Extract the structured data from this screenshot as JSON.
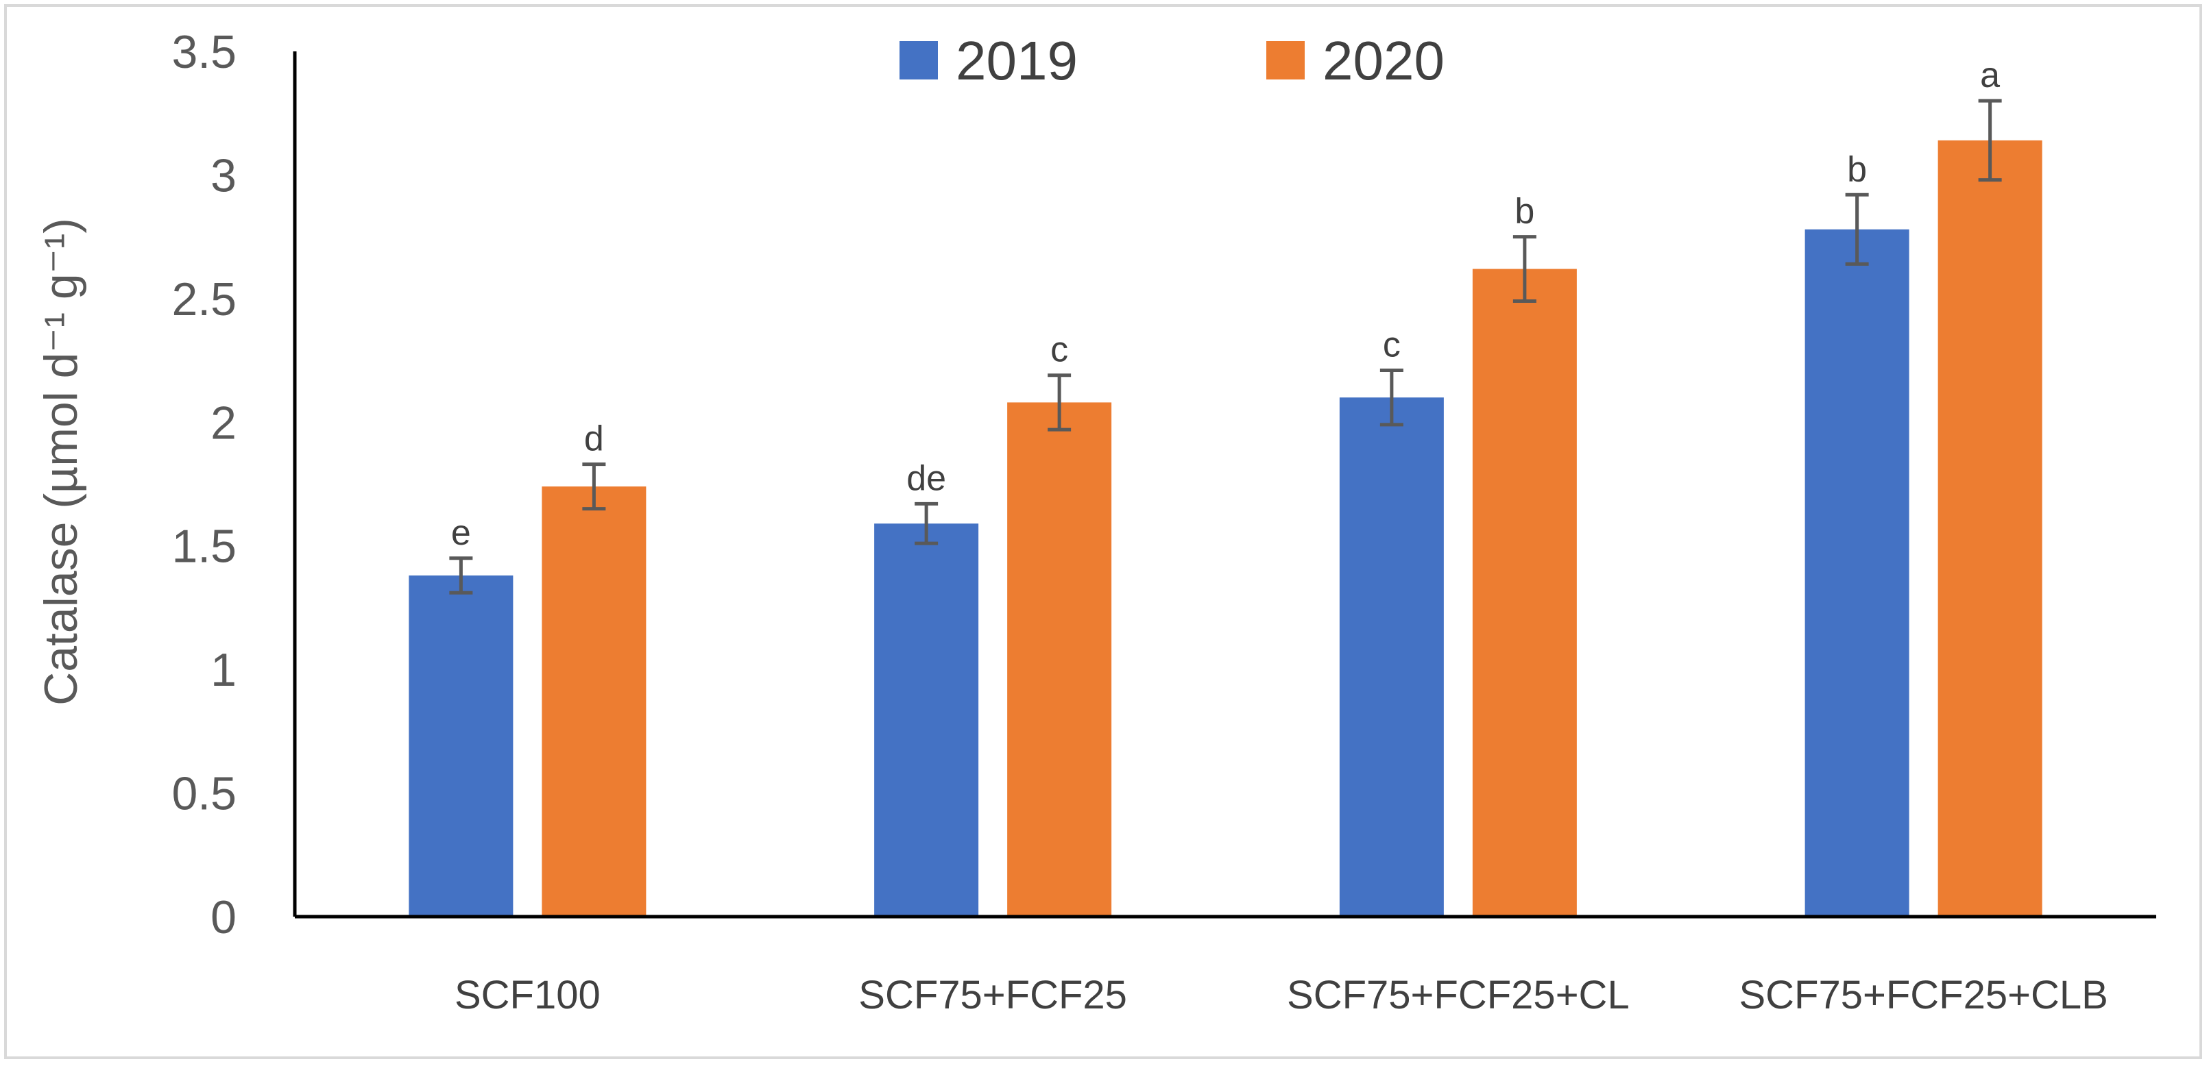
{
  "chart_data": {
    "type": "bar",
    "title": "",
    "xlabel": "",
    "ylabel": "Catalase (µmol d⁻¹ g⁻¹)",
    "ylim": [
      0,
      3.5
    ],
    "yticks": [
      "0",
      "0.5",
      "1",
      "1.5",
      "2",
      "2.5",
      "3",
      "3.5"
    ],
    "grid": false,
    "legend_position": "top-center",
    "categories": [
      "SCF100",
      "SCF75+FCF25",
      "SCF75+FCF25+CL",
      "SCF75+FCF25+CLB"
    ],
    "series": [
      {
        "name": "2019",
        "color": "#4472c4",
        "values": [
          1.38,
          1.59,
          2.1,
          2.78
        ],
        "errors": [
          0.07,
          0.08,
          0.11,
          0.14
        ],
        "letters": [
          "e",
          "de",
          "c",
          "b"
        ]
      },
      {
        "name": "2020",
        "color": "#ed7d31",
        "values": [
          1.74,
          2.08,
          2.62,
          3.14
        ],
        "errors": [
          0.09,
          0.11,
          0.13,
          0.16
        ],
        "letters": [
          "d",
          "c",
          "b",
          "a"
        ]
      }
    ]
  }
}
